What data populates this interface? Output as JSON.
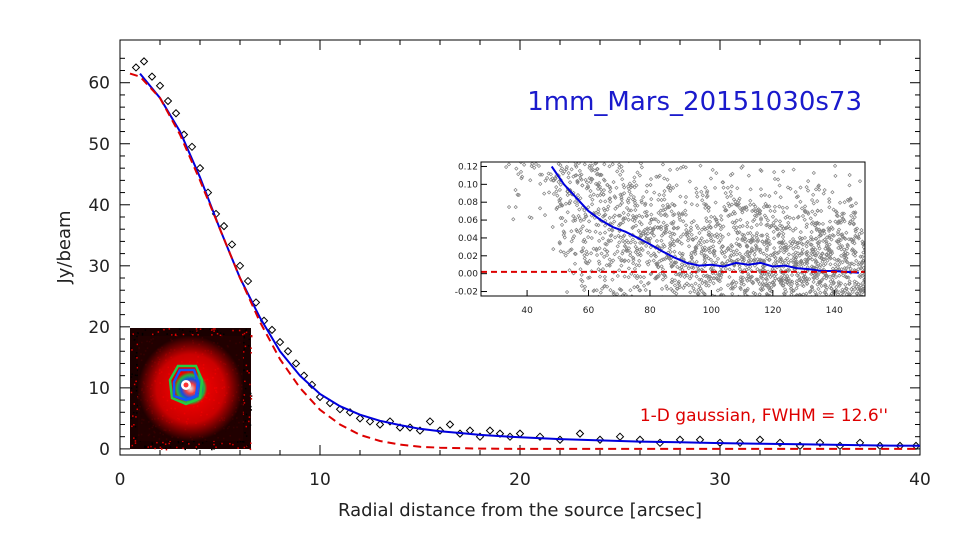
{
  "colors": {
    "points": "#000000",
    "mean_profile": "#0000dd",
    "gaussian_fit": "#dd0000",
    "inset_points": "#808080",
    "title": "#1a1acc",
    "background": "#ffffff"
  },
  "chart_data": [
    {
      "type": "scatter",
      "title": "1mm_Mars_20151030s73",
      "xlabel": "Radial distance from the source [arcsec]",
      "ylabel": "Jy/beam",
      "xlim": [
        0,
        40
      ],
      "ylim": [
        -1,
        67
      ],
      "xticks": [
        "0",
        "10",
        "20",
        "30",
        "40"
      ],
      "yticks": [
        "0",
        "10",
        "20",
        "30",
        "40",
        "50",
        "60"
      ],
      "grid": false,
      "annotation": "1-D gaussian, FWHM = 12.6''",
      "series": [
        {
          "role": "radial profile points (diamond markers)",
          "x": [
            0.8,
            1.2,
            1.6,
            2.0,
            2.4,
            2.8,
            3.2,
            3.6,
            4.0,
            4.4,
            4.8,
            5.2,
            5.6,
            6.0,
            6.4,
            6.8,
            7.2,
            7.6,
            8.0,
            8.4,
            8.8,
            9.2,
            9.6,
            10.0,
            10.5,
            11.0,
            11.5,
            12.0,
            12.5,
            13.0,
            13.5,
            14.0,
            14.5,
            15.0,
            15.5,
            16.0,
            16.5,
            17.0,
            17.5,
            18.0,
            18.5,
            19.0,
            19.5,
            20.0,
            21.0,
            22.0,
            23.0,
            24.0,
            25.0,
            26.0,
            27.0,
            28.0,
            29.0,
            30.0,
            31.0,
            32.0,
            33.0,
            34.0,
            35.0,
            36.0,
            37.0,
            38.0,
            39.0,
            39.8
          ],
          "y": [
            62.5,
            63.5,
            61.0,
            59.5,
            57.0,
            55.0,
            51.5,
            49.5,
            46.0,
            42.0,
            38.5,
            36.5,
            33.5,
            30.0,
            27.5,
            24.0,
            21.0,
            19.5,
            17.5,
            16.0,
            14.0,
            12.0,
            10.5,
            8.5,
            7.5,
            6.5,
            6.0,
            5.0,
            4.5,
            4.0,
            4.5,
            3.5,
            3.5,
            3.0,
            4.5,
            3.0,
            4.0,
            2.5,
            3.0,
            2.0,
            3.0,
            2.5,
            2.0,
            2.5,
            2.0,
            1.5,
            2.5,
            1.5,
            2.0,
            1.5,
            1.0,
            1.5,
            1.5,
            1.0,
            1.0,
            1.5,
            1.0,
            0.5,
            1.0,
            0.5,
            1.0,
            0.5,
            0.5,
            0.5
          ]
        },
        {
          "role": "mean radial profile (solid line)",
          "x": [
            1,
            2,
            3,
            4,
            5,
            6,
            7,
            8,
            9,
            10,
            11,
            12,
            13,
            14,
            15,
            16,
            17,
            18,
            19,
            20,
            22,
            24,
            26,
            28,
            30,
            32,
            34,
            36,
            38,
            40
          ],
          "y": [
            61.5,
            57.5,
            52.0,
            44.5,
            36.0,
            28.0,
            21.5,
            16.0,
            12.0,
            9.0,
            7.0,
            5.6,
            4.6,
            3.9,
            3.3,
            2.9,
            2.6,
            2.3,
            2.1,
            1.9,
            1.6,
            1.4,
            1.2,
            1.1,
            0.95,
            0.85,
            0.75,
            0.65,
            0.55,
            0.5
          ]
        },
        {
          "role": "1-D gaussian fit (dashed line)",
          "x": [
            0.5,
            1,
            2,
            3,
            4,
            5,
            6,
            7,
            8,
            9,
            10,
            11,
            12,
            13,
            14,
            15,
            16,
            18,
            20,
            25,
            30,
            35,
            40
          ],
          "y": [
            61.5,
            61.0,
            57.5,
            51.5,
            44.0,
            36.0,
            28.0,
            20.8,
            14.7,
            10.0,
            6.4,
            4.0,
            2.3,
            1.3,
            0.7,
            0.35,
            0.2,
            0.05,
            0.0,
            0.0,
            0.0,
            0.0,
            0.0
          ]
        }
      ]
    },
    {
      "type": "scatter",
      "role": "inset zoom of the profile wings",
      "xlim": [
        25,
        150
      ],
      "ylim": [
        -0.025,
        0.125
      ],
      "xticks": [
        "40",
        "60",
        "80",
        "100",
        "120",
        "140"
      ],
      "yticks": [
        "-0.02",
        "0.00",
        "0.02",
        "0.04",
        "0.06",
        "0.08",
        "0.10",
        "0.12"
      ],
      "series": [
        {
          "role": "mean profile (solid line)",
          "x": [
            48,
            52,
            56,
            60,
            64,
            68,
            72,
            76,
            80,
            84,
            88,
            92,
            96,
            100,
            104,
            108,
            112,
            116,
            120,
            124,
            128,
            132,
            136,
            140,
            144,
            148
          ],
          "y": [
            0.12,
            0.1,
            0.085,
            0.07,
            0.06,
            0.052,
            0.047,
            0.04,
            0.033,
            0.025,
            0.018,
            0.012,
            0.009,
            0.01,
            0.008,
            0.012,
            0.01,
            0.012,
            0.008,
            0.009,
            0.006,
            0.005,
            0.003,
            0.003,
            0.002,
            0.001
          ]
        },
        {
          "role": "gaussian fit (dashed line)",
          "x": [
            25,
            150
          ],
          "y": [
            0.002,
            0.002
          ]
        }
      ]
    }
  ],
  "thumbnail": {
    "description_icon": "source-map-thumbnail"
  }
}
